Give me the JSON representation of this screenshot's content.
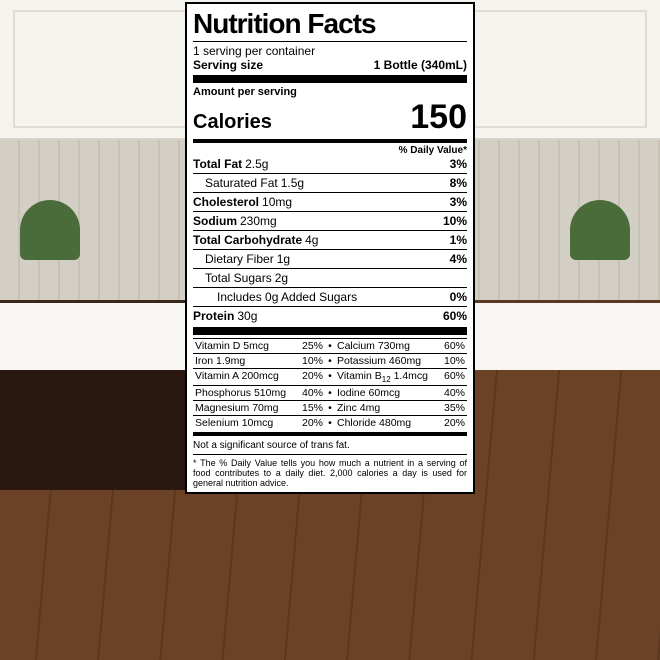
{
  "title": "Nutrition Facts",
  "servings_per_container": "1 serving per container",
  "serving_size_label": "Serving size",
  "serving_size_value": "1 Bottle (340mL)",
  "amount_per_serving": "Amount per serving",
  "calories_label": "Calories",
  "calories_value": "150",
  "dv_header": "% Daily Value*",
  "nutrients": [
    {
      "name": "Total Fat",
      "amt": "2.5g",
      "dv": "3%",
      "bold": true,
      "indent": 0
    },
    {
      "name": "Saturated Fat",
      "amt": "1.5g",
      "dv": "8%",
      "bold": false,
      "indent": 1
    },
    {
      "name": "Cholesterol",
      "amt": "10mg",
      "dv": "3%",
      "bold": true,
      "indent": 0
    },
    {
      "name": "Sodium",
      "amt": "230mg",
      "dv": "10%",
      "bold": true,
      "indent": 0
    },
    {
      "name": "Total Carbohydrate",
      "amt": "4g",
      "dv": "1%",
      "bold": true,
      "indent": 0
    },
    {
      "name": "Dietary Fiber",
      "amt": "1g",
      "dv": "4%",
      "bold": false,
      "indent": 1
    },
    {
      "name": "Total Sugars",
      "amt": "2g",
      "dv": "",
      "bold": false,
      "indent": 1
    },
    {
      "name": "Includes 0g Added Sugars",
      "amt": "",
      "dv": "0%",
      "bold": false,
      "indent": 2
    },
    {
      "name": "Protein",
      "amt": "30g",
      "dv": "60%",
      "bold": true,
      "indent": 0
    }
  ],
  "micronutrients": [
    {
      "l_name": "Vitamin D",
      "l_amt": "5mcg",
      "l_dv": "25%",
      "r_name": "Calcium",
      "r_amt": "730mg",
      "r_dv": "60%"
    },
    {
      "l_name": "Iron",
      "l_amt": "1.9mg",
      "l_dv": "10%",
      "r_name": "Potassium",
      "r_amt": "460mg",
      "r_dv": "10%"
    },
    {
      "l_name": "Vitamin A",
      "l_amt": "200mcg",
      "l_dv": "20%",
      "r_name_html": "Vitamin B<sub>12</sub>",
      "r_amt": "1.4mcg",
      "r_dv": "60%"
    },
    {
      "l_name": "Phosphorus",
      "l_amt": "510mg",
      "l_dv": "40%",
      "r_name": "Iodine",
      "r_amt": "60mcg",
      "r_dv": "40%"
    },
    {
      "l_name": "Magnesium",
      "l_amt": "70mg",
      "l_dv": "15%",
      "r_name": "Zinc",
      "r_amt": "4mg",
      "r_dv": "35%"
    },
    {
      "l_name": "Selenium",
      "l_amt": "10mcg",
      "l_dv": "20%",
      "r_name": "Chloride",
      "r_amt": "480mg",
      "r_dv": "20%"
    }
  ],
  "not_significant": "Not a significant source of trans fat.",
  "footnote": "* The % Daily Value tells you how much a nutrient in a serving of food contributes to a daily diet. 2,000 calories a day is used for general nutrition advice.",
  "colors": {
    "border": "#000000",
    "background": "#ffffff",
    "text": "#000000"
  }
}
